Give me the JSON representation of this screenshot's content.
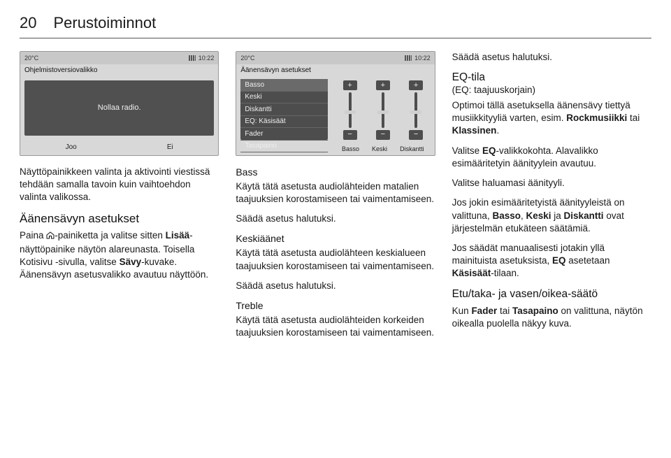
{
  "header": {
    "page_number": "20",
    "title": "Perustoiminnot"
  },
  "col1": {
    "device": {
      "temp": "20°C",
      "time": "10:22",
      "title": "Ohjelmistoversiovalikko",
      "center": "Nollaa radio.",
      "bottom_left": "Joo",
      "bottom_right": "Ei"
    },
    "p1": "Näyttöpainikkeen valinta ja aktivointi viestissä tehdään samalla tavoin kuin vaihtoehdon valinta valikossa.",
    "h1": "Äänensävyn asetukset",
    "p2_a": "Paina ",
    "p2_b": "-painiketta ja valitse sitten ",
    "p2_c": "Lisää",
    "p2_d": "-näyttöpainike näytön alareunasta. Toisella Kotisivu -sivulla, valitse ",
    "p2_e": "Sävy",
    "p2_f": "-kuvake. Äänensävyn asetusvalikko avautuu näyttöön."
  },
  "col2": {
    "device": {
      "temp": "20°C",
      "time": "10:22",
      "title": "Äänensävyn asetukset",
      "list": [
        "Basso",
        "Keski",
        "Diskantti",
        "EQ: Käsisäät",
        "Fader",
        "Tasapaino"
      ],
      "labels": [
        "Basso",
        "Keski",
        "Diskantti"
      ],
      "thumbs": [
        0.5,
        0.5,
        0.5
      ]
    },
    "bass_h": "Bass",
    "bass_p": "Käytä tätä asetusta audiolähteiden matalien taajuuksien korostamiseen tai vaimentamiseen.",
    "adjust": "Säädä asetus halutuksi.",
    "mid_h": "Keskiäänet",
    "mid_p": "Käytä tätä asetusta audiolähteen keskialueen taajuuksien korostamiseen tai vaimentamiseen.",
    "treble_h": "Treble",
    "treble_p": "Käytä tätä asetusta audiolähteiden korkeiden taajuuksien korostamiseen tai vaimentamiseen."
  },
  "col3": {
    "top": "Säädä asetus halutuksi.",
    "eq_h": "EQ-tila",
    "eq_sub": "(EQ: taajuuskorjain)",
    "eq_p1_a": "Optimoi tällä asetuksella äänensävy tiettyä musiikkityyliä varten, esim. ",
    "eq_p1_b": "Rockmusiikki",
    "eq_p1_c": " tai ",
    "eq_p1_d": "Klassinen",
    "eq_p2_a": "Valitse ",
    "eq_p2_b": "EQ",
    "eq_p2_c": "-valikkokohta. Alavalikko esimääritetyin äänityylein avautuu.",
    "eq_p3": "Valitse haluamasi äänityyli.",
    "eq_p4_a": "Jos jokin esimääritetyistä äänityyleistä on valittuna, ",
    "eq_p4_b": "Basso",
    "eq_p4_c": "Keski",
    "eq_p4_d": "Diskantti",
    "eq_p4_e": " ovat järjestelmän etukäteen säätämiä.",
    "eq_p5_a": "Jos säädät manuaalisesti jotakin yllä mainituista asetuksista, ",
    "eq_p5_b": "EQ",
    "eq_p5_c": " asetetaan ",
    "eq_p5_d": "Käsisäät",
    "eq_p5_e": "-tilaan.",
    "fb_h": "Etu/taka- ja vasen/oikea-säätö",
    "fb_p_a": "Kun ",
    "fb_p_b": "Fader",
    "fb_p_c": " tai ",
    "fb_p_d": "Tasapaino",
    "fb_p_e": " on valittuna, näytön oikealla puolella näkyy kuva."
  }
}
